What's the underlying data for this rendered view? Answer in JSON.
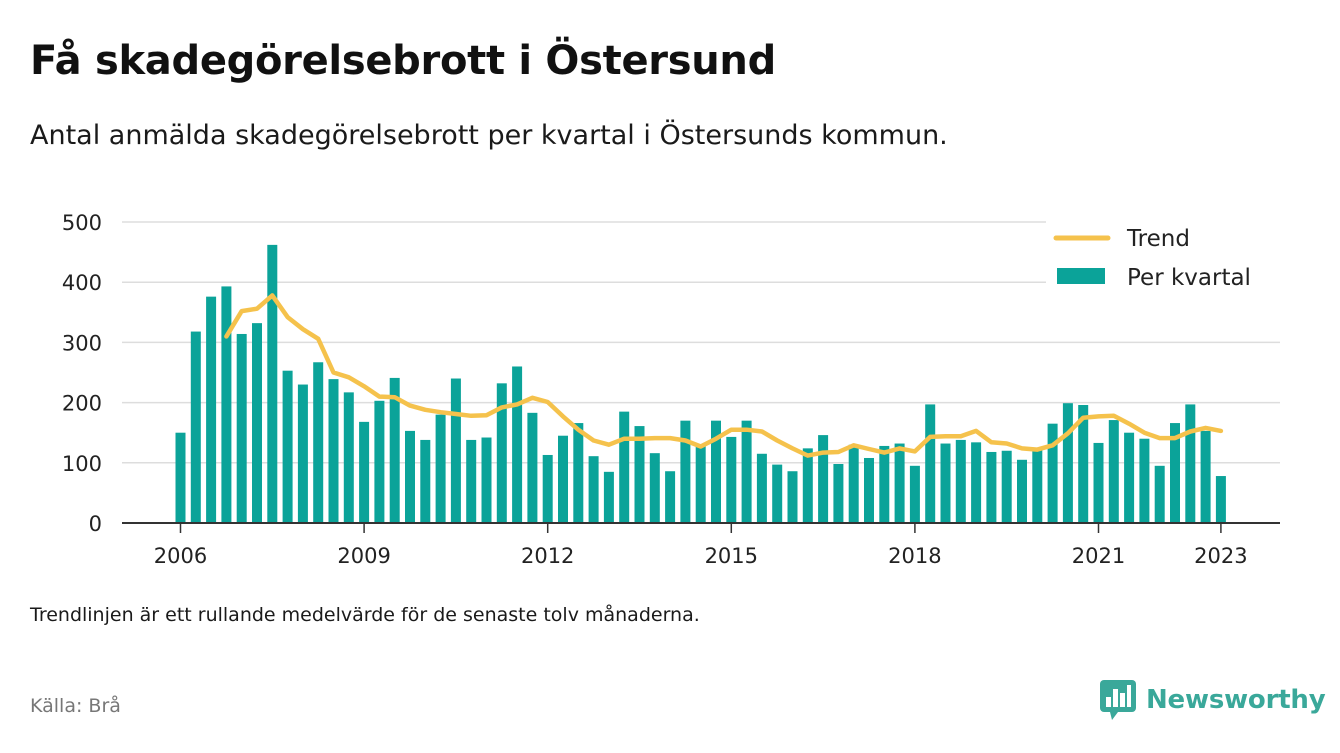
{
  "title": "Få skadegörelsebrott i Östersund",
  "subtitle": "Antal anmälda skadegörelsebrott per kvartal i Östersunds kommun.",
  "note": "Trendlinjen är ett rullande medelvärde för de senaste tolv månaderna.",
  "source": "Källa: Brå",
  "brand": {
    "name": "Newsworthy",
    "icon": "newsworthy-logo-icon"
  },
  "colors": {
    "bar": "#0ba399",
    "trend": "#f5c24c",
    "grid": "#dddddd",
    "axis": "#333333",
    "brand": "#3aa89a"
  },
  "chart_data": {
    "type": "bar",
    "xlabel": "",
    "ylabel": "",
    "ylim": [
      0,
      500
    ],
    "yticks": [
      0,
      100,
      200,
      300,
      400,
      500
    ],
    "xticks": [
      "2006",
      "2009",
      "2012",
      "2015",
      "2018",
      "2021",
      "2023"
    ],
    "grid": true,
    "legend_position": "top-right",
    "start": "2006 Q1",
    "series": [
      {
        "name": "Per kvartal",
        "type": "bar",
        "values": [
          150,
          318,
          376,
          393,
          314,
          332,
          462,
          253,
          230,
          267,
          239,
          217,
          168,
          203,
          241,
          153,
          138,
          180,
          240,
          138,
          142,
          232,
          260,
          183,
          113,
          145,
          166,
          111,
          85,
          185,
          161,
          116,
          86,
          170,
          130,
          170,
          143,
          170,
          115,
          97,
          86,
          124,
          146,
          98,
          130,
          108,
          128,
          132,
          95,
          197,
          132,
          138,
          134,
          118,
          120,
          105,
          125,
          165,
          199,
          196,
          133,
          171,
          150,
          140,
          95,
          166,
          197,
          153,
          78
        ]
      },
      {
        "name": "Trend",
        "type": "line",
        "values": [
          null,
          null,
          null,
          310,
          352,
          356,
          378,
          342,
          322,
          306,
          250,
          242,
          227,
          210,
          209,
          195,
          188,
          184,
          181,
          178,
          179,
          192,
          197,
          208,
          201,
          177,
          155,
          137,
          130,
          140,
          140,
          141,
          141,
          137,
          127,
          140,
          155,
          155,
          152,
          137,
          124,
          112,
          117,
          118,
          129,
          123,
          117,
          124,
          119,
          143,
          144,
          144,
          153,
          134,
          132,
          124,
          122,
          129,
          149,
          175,
          177,
          178,
          165,
          150,
          141,
          141,
          152,
          158,
          153
        ]
      }
    ]
  }
}
